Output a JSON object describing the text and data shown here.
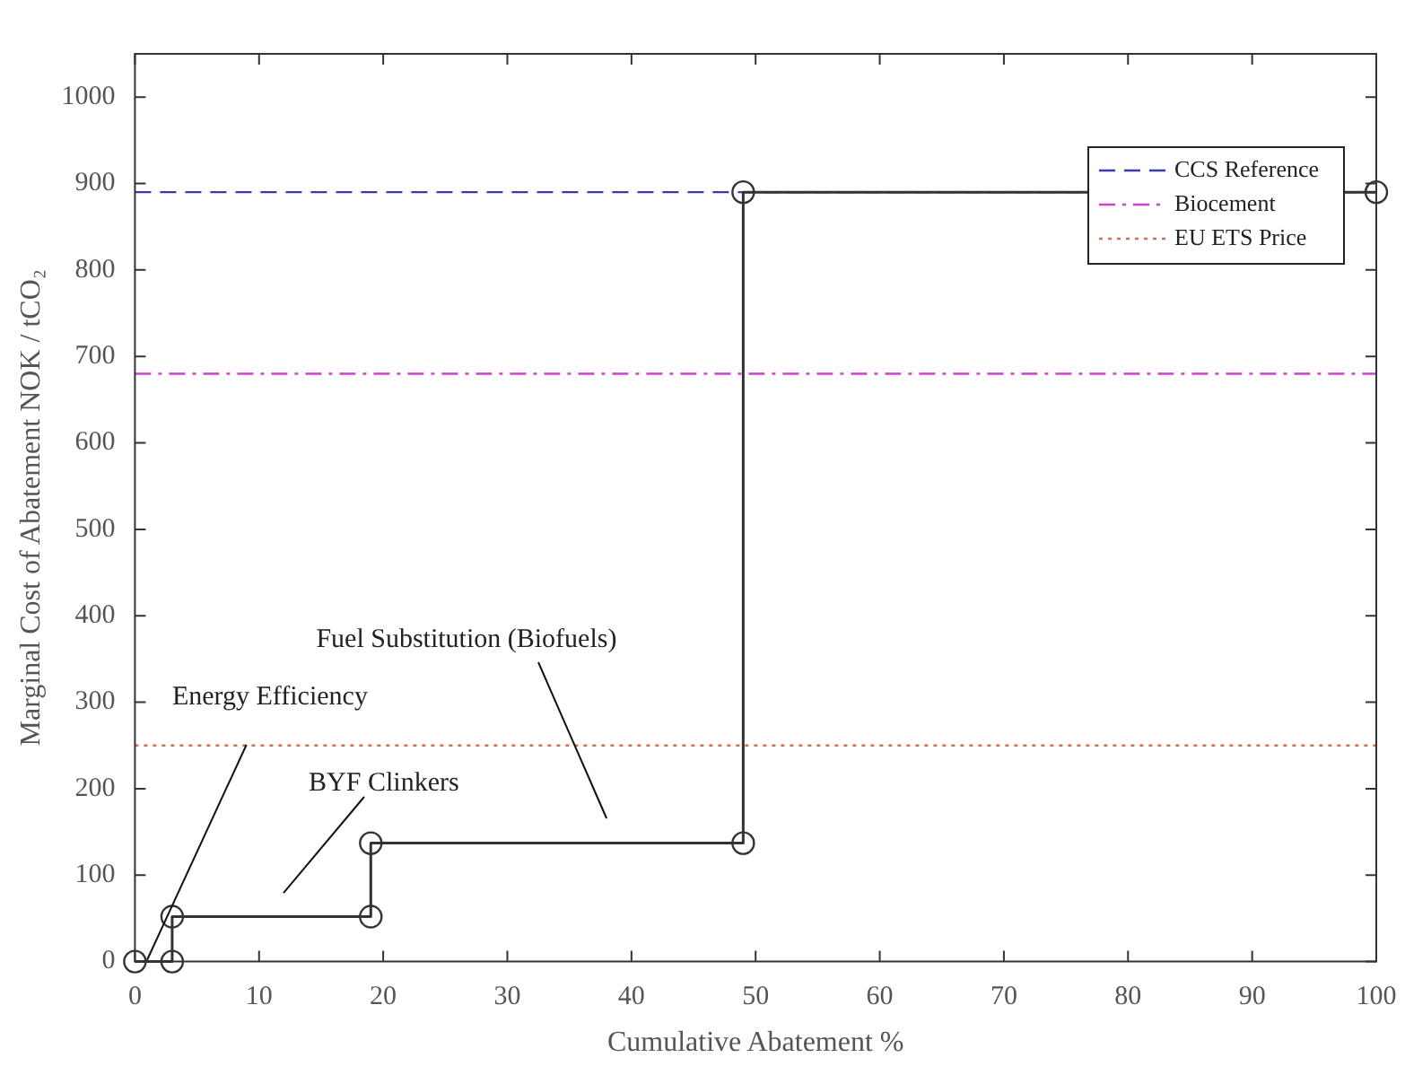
{
  "chart_data": {
    "type": "line",
    "xlabel": "Cumulative Abatement %",
    "ylabel": "Marginal Cost of Abatement NOK / tCO₂",
    "x": [
      0,
      3,
      3,
      19,
      19,
      49,
      49,
      100
    ],
    "series": [
      {
        "color": "#333333",
        "values": [
          0,
          0,
          52,
          52,
          137,
          137,
          890,
          890
        ]
      }
    ],
    "xlim": [
      0,
      100
    ],
    "xticks": [
      0,
      10,
      20,
      30,
      40,
      50,
      60,
      70,
      80,
      90,
      100
    ],
    "ylim": [
      0,
      1050
    ],
    "yticks": [
      0,
      100,
      200,
      300,
      400,
      500,
      600,
      700,
      800,
      900,
      1000
    ],
    "ref_lines": [
      {
        "axis": "y",
        "value": 890,
        "label": "CCS Reference",
        "color": "#3b3bb0",
        "line_style": "dashed"
      },
      {
        "axis": "y",
        "value": 680,
        "label": "Biocement",
        "color": "#d040d0",
        "line_style": "dashdot"
      },
      {
        "axis": "y",
        "value": 250,
        "label": "EU ETS Price",
        "color": "#d07050",
        "line_style": "dotted"
      }
    ],
    "annotations": [
      {
        "text": "Energy Efficiency",
        "x": 1,
        "y": 0
      },
      "BYF Clinkers",
      "Fuel Substitution (Biofuels)"
    ],
    "grid": false,
    "legend": "top right",
    "marker": "circle",
    "line_style": "solid"
  }
}
